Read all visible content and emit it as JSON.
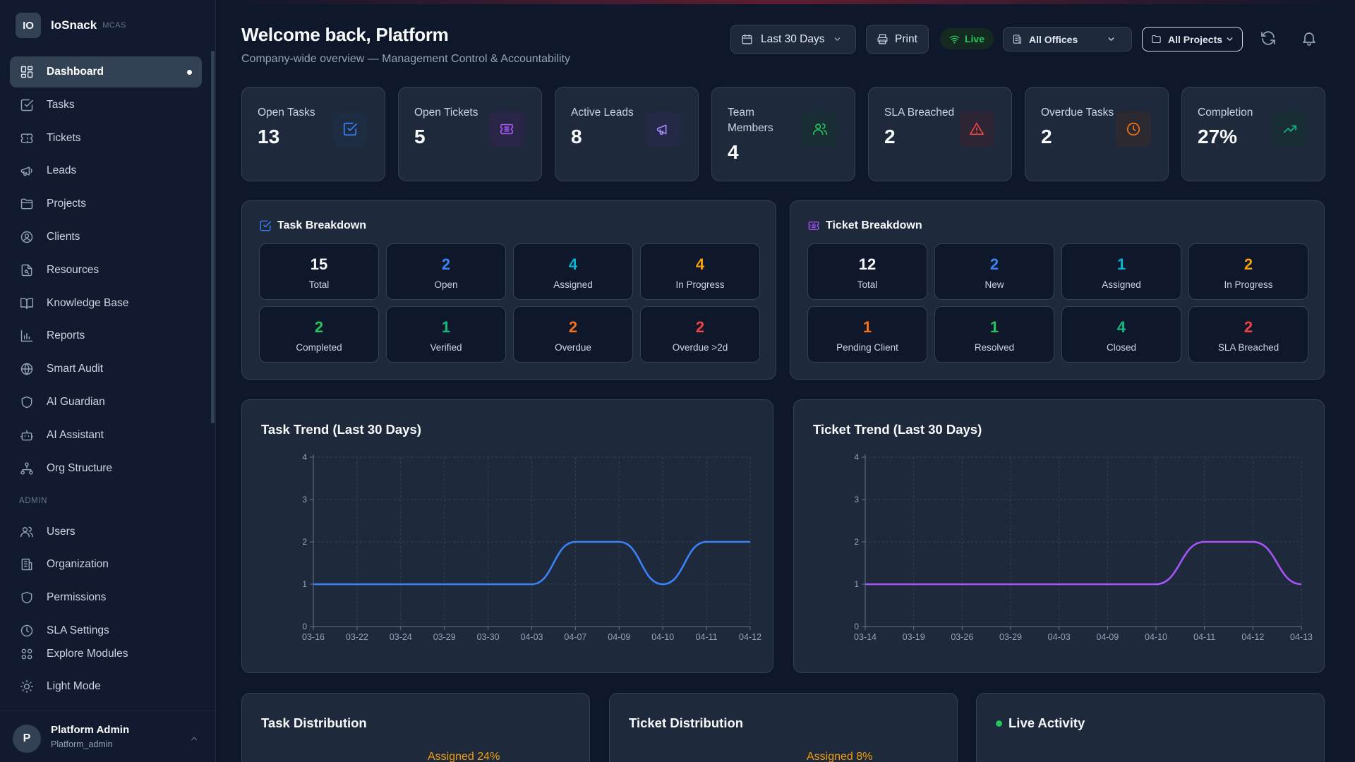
{
  "brand": {
    "logo": "IO",
    "name": "IoSnack",
    "sub": "MCAS"
  },
  "nav": {
    "items": [
      {
        "label": "Dashboard",
        "icon": "dashboard-icon"
      },
      {
        "label": "Tasks",
        "icon": "check-square-icon"
      },
      {
        "label": "Tickets",
        "icon": "ticket-icon"
      },
      {
        "label": "Leads",
        "icon": "megaphone-icon"
      },
      {
        "label": "Projects",
        "icon": "folder-icon"
      },
      {
        "label": "Clients",
        "icon": "user-circle-icon"
      },
      {
        "label": "Resources",
        "icon": "file-icon"
      },
      {
        "label": "Knowledge Base",
        "icon": "book-icon"
      },
      {
        "label": "Reports",
        "icon": "bar-chart-icon"
      },
      {
        "label": "Smart Audit",
        "icon": "globe-icon"
      },
      {
        "label": "AI Guardian",
        "icon": "shield-icon"
      },
      {
        "label": "AI Assistant",
        "icon": "bot-icon"
      },
      {
        "label": "Org Structure",
        "icon": "org-chart-icon"
      }
    ],
    "admin_heading": "ADMIN",
    "admin_items": [
      {
        "label": "Users",
        "icon": "users-icon"
      },
      {
        "label": "Organization",
        "icon": "building-icon"
      },
      {
        "label": "Permissions",
        "icon": "shield-icon"
      },
      {
        "label": "SLA Settings",
        "icon": "clock-icon"
      }
    ],
    "bottom_items": [
      {
        "label": "Explore Modules",
        "icon": "grid-icon"
      },
      {
        "label": "Light Mode",
        "icon": "sun-icon"
      }
    ]
  },
  "user": {
    "initial": "P",
    "name": "Platform Admin",
    "role": "Platform_admin"
  },
  "header": {
    "title": "Welcome back, Platform",
    "subtitle": "Company-wide overview — Management Control & Accountability",
    "date_range": "Last 30 Days",
    "print_label": "Print",
    "live_label": "Live",
    "offices_select": "All Offices",
    "projects_select": "All Projects"
  },
  "stats": [
    {
      "label": "Open Tasks",
      "value": "13",
      "icon": "check-square-icon",
      "color": "#3b82f6"
    },
    {
      "label": "Open Tickets",
      "value": "5",
      "icon": "ticket-icon",
      "color": "#a855f7"
    },
    {
      "label": "Active Leads",
      "value": "8",
      "icon": "megaphone-icon",
      "color": "#a78bfa"
    },
    {
      "label": "Team Members",
      "value": "4",
      "icon": "users-icon",
      "color": "#22c55e"
    },
    {
      "label": "SLA Breached",
      "value": "2",
      "icon": "alert-triangle-icon",
      "color": "#ef4444"
    },
    {
      "label": "Overdue Tasks",
      "value": "2",
      "icon": "clock-icon",
      "color": "#f97316"
    },
    {
      "label": "Completion",
      "value": "27%",
      "icon": "trending-up-icon",
      "color": "#10b981"
    }
  ],
  "task_breakdown": {
    "title": "Task Breakdown",
    "cells": [
      {
        "value": "15",
        "label": "Total",
        "color": "#f8fafc"
      },
      {
        "value": "2",
        "label": "Open",
        "color": "#3b82f6"
      },
      {
        "value": "4",
        "label": "Assigned",
        "color": "#06b6d4"
      },
      {
        "value": "4",
        "label": "In Progress",
        "color": "#f59e0b"
      },
      {
        "value": "2",
        "label": "Completed",
        "color": "#22c55e"
      },
      {
        "value": "1",
        "label": "Verified",
        "color": "#10b981"
      },
      {
        "value": "2",
        "label": "Overdue",
        "color": "#f97316"
      },
      {
        "value": "2",
        "label": "Overdue >2d",
        "color": "#ef4444"
      }
    ]
  },
  "ticket_breakdown": {
    "title": "Ticket Breakdown",
    "cells": [
      {
        "value": "12",
        "label": "Total",
        "color": "#f8fafc"
      },
      {
        "value": "2",
        "label": "New",
        "color": "#3b82f6"
      },
      {
        "value": "1",
        "label": "Assigned",
        "color": "#06b6d4"
      },
      {
        "value": "2",
        "label": "In Progress",
        "color": "#f59e0b"
      },
      {
        "value": "1",
        "label": "Pending Client",
        "color": "#f97316"
      },
      {
        "value": "1",
        "label": "Resolved",
        "color": "#22c55e"
      },
      {
        "value": "4",
        "label": "Closed",
        "color": "#10b981"
      },
      {
        "value": "2",
        "label": "SLA Breached",
        "color": "#ef4444"
      }
    ]
  },
  "chart_data": [
    {
      "type": "line",
      "title": "Task Trend (Last 30 Days)",
      "categories": [
        "03-16",
        "03-22",
        "03-24",
        "03-29",
        "03-30",
        "04-03",
        "04-07",
        "04-09",
        "04-10",
        "04-11",
        "04-12"
      ],
      "values": [
        1,
        1,
        1,
        1,
        1,
        1,
        2,
        2,
        1,
        2,
        2
      ],
      "ylim": [
        0,
        4
      ],
      "yticks": [
        0,
        1,
        2,
        3,
        4
      ],
      "color": "#3b82f6",
      "grid": true
    },
    {
      "type": "line",
      "title": "Ticket Trend (Last 30 Days)",
      "categories": [
        "03-14",
        "03-19",
        "03-26",
        "03-29",
        "04-03",
        "04-09",
        "04-10",
        "04-11",
        "04-12",
        "04-13"
      ],
      "values": [
        1,
        1,
        1,
        1,
        1,
        1,
        1,
        2,
        2,
        1
      ],
      "ylim": [
        0,
        4
      ],
      "yticks": [
        0,
        1,
        2,
        3,
        4
      ],
      "color": "#a855f7",
      "grid": true
    }
  ],
  "bottom_cards": [
    {
      "title": "Task Distribution",
      "hint": "Assigned 24%"
    },
    {
      "title": "Ticket Distribution",
      "hint": "Assigned 8%"
    },
    {
      "title": "Live Activity"
    }
  ]
}
